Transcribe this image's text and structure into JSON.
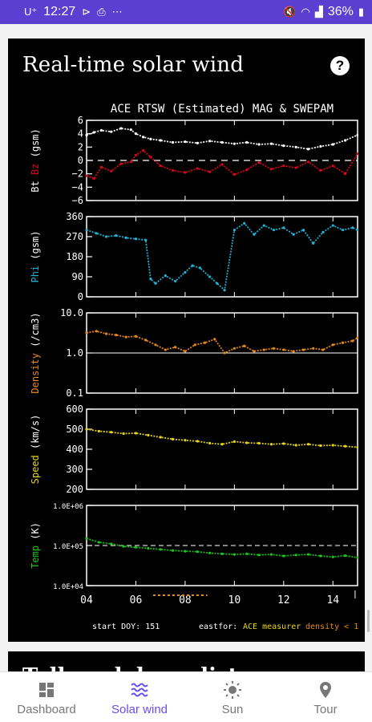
{
  "status_bar": {
    "time": "12:27",
    "left_icons": [
      "u-plus-icon",
      "signal-icon",
      "print-icon",
      "more-dots-icon"
    ],
    "battery": "36%"
  },
  "card": {
    "title": "Real-time solar wind"
  },
  "next_card": {
    "title": "Talk and demo lists"
  },
  "chart_data": {
    "type": "scatter",
    "title": "ACE RTSW (Estimated) MAG & SWEPAM",
    "x_ticks": [
      "04",
      "06",
      "08",
      "10",
      "12",
      "14"
    ],
    "x_range": [
      4,
      15
    ],
    "footer_left": "start DOY: 151",
    "footer_mid": "eastfor:",
    "footer_ace": "ACE measurer",
    "footer_density": "density < 1",
    "colors": {
      "bt": "#ffffff",
      "bz": "#e0001a",
      "phi": "#22b3d8",
      "density": "#e88a1a",
      "speed": "#e8d61a",
      "temp": "#19c619"
    },
    "panels": [
      {
        "id": "mag",
        "ylabel_parts": [
          "Bt",
          "Bz",
          "(gsm)"
        ],
        "ticks": [
          "6",
          "4",
          "2",
          "0",
          "−2",
          "−4",
          "−6"
        ],
        "ylim": [
          -6,
          6
        ],
        "series": [
          {
            "name": "Bt",
            "x": [
              4,
              4.3,
              4.6,
              5,
              5.4,
              5.8,
              6,
              6.3,
              6.6,
              7,
              7.5,
              8,
              8.5,
              9,
              9.5,
              10,
              10.5,
              11,
              11.5,
              12,
              12.5,
              13,
              13.5,
              14,
              14.5,
              15
            ],
            "y": [
              3.8,
              4.2,
              4.5,
              4.3,
              4.8,
              4.6,
              4.0,
              3.5,
              3.2,
              3.0,
              2.7,
              2.8,
              2.6,
              2.9,
              2.7,
              2.5,
              2.7,
              2.4,
              2.5,
              2.2,
              2.0,
              1.7,
              2.1,
              2.4,
              3.0,
              3.8
            ]
          },
          {
            "name": "Bz",
            "x": [
              4,
              4.3,
              4.6,
              5,
              5.4,
              5.8,
              6,
              6.3,
              6.6,
              7,
              7.5,
              8,
              8.5,
              9,
              9.5,
              10,
              10.5,
              11,
              11.5,
              12,
              12.5,
              13,
              13.5,
              14,
              14.5,
              15
            ],
            "y": [
              -2.3,
              -2.7,
              -1.0,
              -1.6,
              -0.5,
              -0.2,
              0.8,
              1.5,
              0.5,
              -0.8,
              -1.5,
              -1.8,
              -1.2,
              -1.7,
              -0.6,
              -2.1,
              -1.4,
              -0.3,
              -1.3,
              -0.8,
              -1.1,
              -0.2,
              -1.5,
              -0.8,
              -2.0,
              1.0
            ]
          }
        ]
      },
      {
        "id": "phi",
        "ylabel_parts": [
          "Phi",
          "(gsm)"
        ],
        "ticks": [
          "360",
          "270",
          "180",
          "90",
          "0"
        ],
        "ylim": [
          0,
          360
        ],
        "series": [
          {
            "name": "Phi",
            "x": [
              4,
              4.4,
              4.8,
              5.2,
              5.6,
              6,
              6.4,
              6.6,
              6.8,
              7.2,
              7.6,
              8,
              8.3,
              8.6,
              9,
              9.3,
              9.6,
              10,
              10.4,
              10.8,
              11.2,
              11.6,
              12,
              12.4,
              12.8,
              13.2,
              13.6,
              14,
              14.4,
              14.8,
              15
            ],
            "y": [
              300,
              285,
              270,
              275,
              265,
              260,
              255,
              80,
              60,
              95,
              70,
              110,
              140,
              130,
              90,
              60,
              30,
              300,
              330,
              280,
              320,
              300,
              310,
              280,
              300,
              240,
              290,
              320,
              300,
              310,
              300
            ]
          }
        ]
      },
      {
        "id": "density",
        "ylabel_parts": [
          "Density",
          "(/cm3)"
        ],
        "ticks": [
          "10.0",
          "1.0",
          "0.1"
        ],
        "ylim": [
          0.1,
          10
        ],
        "log": true,
        "series": [
          {
            "name": "Density",
            "x": [
              4,
              4.4,
              4.8,
              5.2,
              5.6,
              6,
              6.4,
              6.8,
              7.2,
              7.6,
              8,
              8.4,
              8.8,
              9.2,
              9.6,
              10,
              10.4,
              10.8,
              11.2,
              11.6,
              12,
              12.4,
              12.8,
              13.2,
              13.6,
              14,
              14.4,
              14.8,
              15
            ],
            "y": [
              3.2,
              3.5,
              3.0,
              2.8,
              2.5,
              2.6,
              2.1,
              1.6,
              1.2,
              1.4,
              1.1,
              1.6,
              1.8,
              2.2,
              1.0,
              1.3,
              1.5,
              1.1,
              1.2,
              1.3,
              1.2,
              1.1,
              1.2,
              1.3,
              1.2,
              1.6,
              1.8,
              2.0,
              2.4
            ]
          }
        ]
      },
      {
        "id": "speed",
        "ylabel_parts": [
          "Speed",
          "(km/s)"
        ],
        "ticks": [
          "600",
          "500",
          "400",
          "300",
          "200"
        ],
        "ylim": [
          200,
          600
        ],
        "series": [
          {
            "name": "Speed",
            "x": [
              4,
              4.5,
              5,
              5.5,
              6,
              6.5,
              7,
              7.5,
              8,
              8.5,
              9,
              9.5,
              10,
              10.5,
              11,
              11.5,
              12,
              12.5,
              13,
              13.5,
              14,
              14.5,
              15
            ],
            "y": [
              500,
              490,
              485,
              478,
              480,
              470,
              460,
              450,
              445,
              440,
              430,
              425,
              438,
              432,
              430,
              425,
              428,
              420,
              425,
              418,
              420,
              415,
              410
            ]
          }
        ]
      },
      {
        "id": "temp",
        "ylabel_parts": [
          "Temp",
          "(K)"
        ],
        "ticks": [
          "1.0E+06",
          "1.0E+05",
          "1.0E+04"
        ],
        "ylim": [
          10000,
          1000000
        ],
        "log": true,
        "series": [
          {
            "name": "Temp",
            "x": [
              4,
              4.5,
              5,
              5.5,
              6,
              6.5,
              7,
              7.5,
              8,
              8.5,
              9,
              9.5,
              10,
              10.5,
              11,
              11.5,
              12,
              12.5,
              13,
              13.5,
              14,
              14.5,
              15
            ],
            "y": [
              150000,
              120000,
              110000,
              95000,
              90000,
              85000,
              80000,
              75000,
              72000,
              70000,
              65000,
              62000,
              60000,
              62000,
              58000,
              60000,
              55000,
              58000,
              60000,
              55000,
              52000,
              56000,
              50000
            ]
          }
        ]
      }
    ]
  },
  "nav": [
    {
      "label": "Dashboard",
      "icon": "dashboard-icon",
      "active": false
    },
    {
      "label": "Solar wind",
      "icon": "waves-icon",
      "active": true
    },
    {
      "label": "Sun",
      "icon": "sun-icon",
      "active": false
    },
    {
      "label": "Tour",
      "icon": "location-pin-icon",
      "active": false
    }
  ]
}
